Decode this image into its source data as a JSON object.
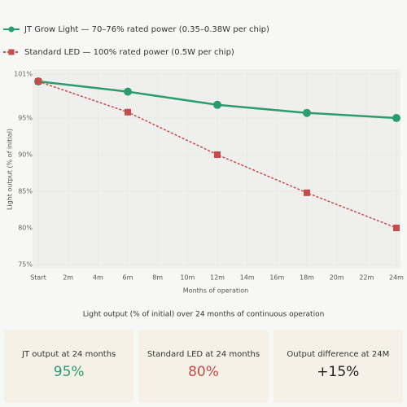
{
  "chart_data": {
    "type": "line",
    "x_label": "Months of operation",
    "y_label": "Light output (% of initial)",
    "caption": "Light output (% of initial) over 24 months of continuous operation",
    "xlim": [
      0,
      24
    ],
    "xticks": [
      {
        "value": 0,
        "label": "Start"
      },
      {
        "value": 2,
        "label": "2m"
      },
      {
        "value": 4,
        "label": "4m"
      },
      {
        "value": 6,
        "label": "6m"
      },
      {
        "value": 8,
        "label": "8m"
      },
      {
        "value": 10,
        "label": "10m"
      },
      {
        "value": 12,
        "label": "12m"
      },
      {
        "value": 14,
        "label": "14m"
      },
      {
        "value": 16,
        "label": "16m"
      },
      {
        "value": 18,
        "label": "18m"
      },
      {
        "value": 20,
        "label": "20m"
      },
      {
        "value": 22,
        "label": "22m"
      },
      {
        "value": 24,
        "label": "24m"
      }
    ],
    "ylim": [
      75,
      101
    ],
    "yticks": [
      {
        "value": 75,
        "label": "75%"
      },
      {
        "value": 80,
        "label": "80%"
      },
      {
        "value": 85,
        "label": "85%"
      },
      {
        "value": 90,
        "label": "90%"
      },
      {
        "value": 95,
        "label": "95%"
      },
      {
        "value": 101,
        "label": "101%"
      }
    ],
    "grid": true,
    "series": [
      {
        "name": "JT Grow Light — 70–76% rated power (0.35–0.38W per chip)",
        "color": "#2a9d6e",
        "dashed": false,
        "marker": "circle",
        "x": [
          0,
          6,
          12,
          18,
          24
        ],
        "values": [
          100,
          98.6,
          96.8,
          95.7,
          95
        ]
      },
      {
        "name": "Standard LED — 100% rated power (0.5W per chip)",
        "color": "#c94a4a",
        "dashed": true,
        "marker": "square",
        "x": [
          0,
          6,
          12,
          18,
          24
        ],
        "values": [
          100,
          95.8,
          90,
          84.8,
          80
        ]
      }
    ]
  },
  "cards": [
    {
      "label": "JT output at 24 months",
      "value": "95%",
      "color": "#2a9d6e"
    },
    {
      "label": "Standard LED at 24 months",
      "value": "80%",
      "color": "#c94a4a"
    },
    {
      "label": "Output difference at 24M",
      "value": "+15%",
      "color": "#222"
    }
  ]
}
